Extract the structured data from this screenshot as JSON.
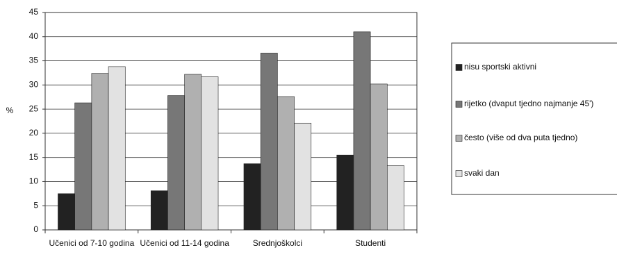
{
  "chart_data": {
    "type": "bar",
    "y_label": "%",
    "categories": [
      "Učenici od 7-10 godina",
      "Učenici od 11-14 godina",
      "Srednjoškolci",
      "Studenti"
    ],
    "series": [
      {
        "name": "nisu sportski aktivni",
        "color": "#222222",
        "values": [
          7.5,
          8.1,
          13.7,
          15.5
        ]
      },
      {
        "name": "rijetko (dvaput tjedno najmanje 45')",
        "color": "#777777",
        "values": [
          26.3,
          27.8,
          36.6,
          41.0
        ]
      },
      {
        "name": "često (više od dva puta tjedno)",
        "color": "#b0b0b0",
        "values": [
          32.4,
          32.2,
          27.6,
          30.2
        ]
      },
      {
        "name": "svaki dan",
        "color": "#e2e2e2",
        "values": [
          33.8,
          31.7,
          22.1,
          13.3
        ]
      }
    ],
    "ylim": [
      0,
      45
    ],
    "yticks": [
      0,
      5,
      10,
      15,
      20,
      25,
      30,
      35,
      40,
      45
    ],
    "grid": true,
    "legend": "right"
  }
}
